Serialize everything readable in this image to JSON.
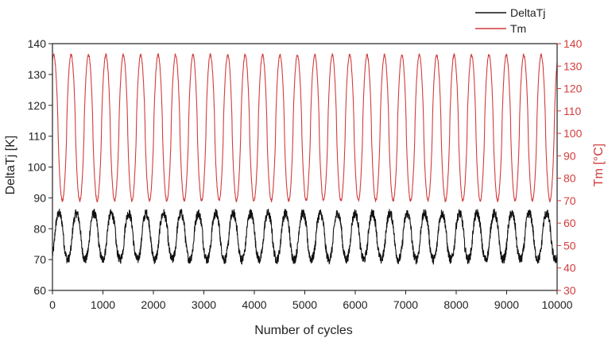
{
  "chart_data": {
    "type": "line",
    "title": "",
    "xlabel": "Number of cycles",
    "ylabel_left": "DeltaTj [K]",
    "ylabel_right": "Tm [°C]",
    "xlim": [
      0,
      10000
    ],
    "ylim_left": [
      60,
      140
    ],
    "ylim_right": [
      30,
      140
    ],
    "x_ticks": [
      0,
      1000,
      2000,
      3000,
      4000,
      5000,
      6000,
      7000,
      8000,
      9000,
      10000
    ],
    "y_left_ticks": [
      60,
      70,
      80,
      90,
      100,
      110,
      120,
      130,
      140
    ],
    "y_right_ticks": [
      30,
      40,
      50,
      60,
      70,
      80,
      90,
      100,
      110,
      120,
      130,
      140
    ],
    "grid": false,
    "legend": {
      "placement": "top-right",
      "entries": [
        "DeltaTj",
        "Tm"
      ]
    },
    "series": [
      {
        "name": "DeltaTj",
        "axis": "left",
        "color": "#111111",
        "shape": "oscillation",
        "period_cycles": 345,
        "min": 70,
        "max": 85,
        "noise": 1.5,
        "start": 72
      },
      {
        "name": "Tm",
        "axis": "right",
        "color": "#d23c3c",
        "shape": "oscillation",
        "period_cycles": 345,
        "min": 70,
        "max": 135,
        "noise": 0.6,
        "start": 132
      }
    ]
  }
}
